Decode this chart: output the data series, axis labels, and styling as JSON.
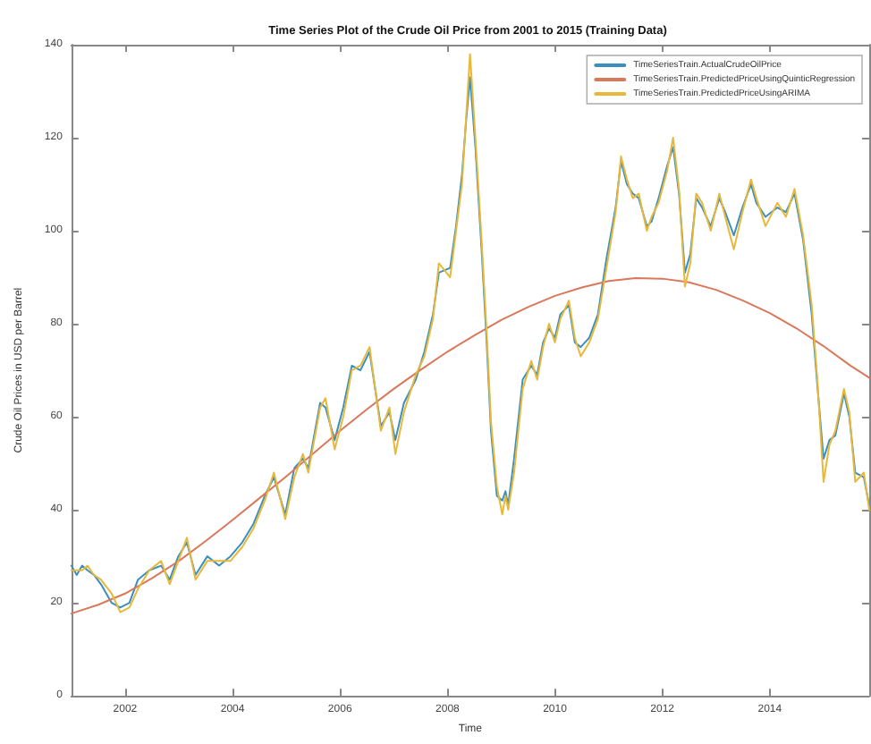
{
  "chart_data": {
    "type": "line",
    "title": "Time Series Plot of the Crude Oil Price from 2001 to 2015 (Training Data)",
    "xlabel": "Time",
    "ylabel": "Crude Oil Prices in USD per Barrel",
    "x": [
      2001.0,
      2001.1,
      2001.2,
      2001.3,
      2001.42,
      2001.55,
      2001.75,
      2001.91,
      2002.08,
      2002.24,
      2002.45,
      2002.67,
      2002.83,
      2002.99,
      2003.15,
      2003.31,
      2003.53,
      2003.75,
      2003.96,
      2004.18,
      2004.39,
      2004.6,
      2004.77,
      2004.98,
      2005.15,
      2005.31,
      2005.41,
      2005.63,
      2005.73,
      2005.9,
      2006.06,
      2006.22,
      2006.38,
      2006.55,
      2006.76,
      2006.92,
      2007.03,
      2007.19,
      2007.41,
      2007.57,
      2007.73,
      2007.84,
      2008.05,
      2008.16,
      2008.27,
      2008.35,
      2008.42,
      2008.52,
      2008.64,
      2008.73,
      2008.81,
      2008.92,
      2009.02,
      2009.08,
      2009.13,
      2009.24,
      2009.4,
      2009.56,
      2009.67,
      2009.78,
      2009.89,
      2010.0,
      2010.1,
      2010.26,
      2010.37,
      2010.48,
      2010.64,
      2010.8,
      2010.96,
      2011.13,
      2011.23,
      2011.34,
      2011.45,
      2011.56,
      2011.71,
      2011.8,
      2011.93,
      2012.09,
      2012.2,
      2012.31,
      2012.42,
      2012.52,
      2012.63,
      2012.74,
      2012.9,
      2013.06,
      2013.17,
      2013.33,
      2013.49,
      2013.65,
      2013.75,
      2013.92,
      2014.14,
      2014.3,
      2014.46,
      2014.62,
      2014.78,
      2014.89,
      2015.0,
      2015.11,
      2015.22,
      2015.38,
      2015.48,
      2015.59,
      2015.75,
      2015.85
    ],
    "series": [
      {
        "name": "TimeSeriesTrain.ActualCrudeOilPrice",
        "color": "#3a8fbf",
        "values": [
          28,
          26,
          28,
          27,
          26,
          24,
          20,
          19,
          20,
          25,
          27,
          28,
          25,
          30,
          33,
          26,
          30,
          28,
          30,
          33,
          37,
          43,
          47,
          39,
          49,
          51,
          49,
          63,
          62,
          55,
          62,
          71,
          70,
          74,
          58,
          61,
          55,
          63,
          68,
          74,
          82,
          91,
          92,
          101,
          112,
          124,
          133,
          118,
          95,
          76,
          57,
          43,
          42,
          44,
          41,
          51,
          68,
          71,
          69,
          76,
          79,
          77,
          82,
          84,
          76,
          75,
          77,
          82,
          94,
          105,
          115,
          110,
          108,
          107,
          101,
          102,
          107,
          114,
          118,
          108,
          91,
          95,
          107,
          105,
          101,
          107,
          104,
          99,
          105,
          110,
          106,
          103,
          105,
          104,
          108,
          98,
          82,
          66,
          51,
          55,
          56,
          65,
          60,
          48,
          47,
          41
        ]
      },
      {
        "name": "TimeSeriesTrain.PredictedPriceUsingQuinticRegression",
        "color": "#d9785a",
        "x": [
          2001,
          2001.5,
          2002,
          2002.5,
          2003,
          2003.5,
          2004,
          2004.5,
          2005,
          2005.5,
          2006,
          2006.5,
          2007,
          2007.5,
          2008,
          2008.5,
          2009,
          2009.5,
          2010,
          2010.5,
          2011,
          2011.5,
          2012,
          2012.5,
          2013,
          2013.5,
          2014,
          2014.5,
          2015,
          2015.5,
          2015.85
        ],
        "values": [
          17.7,
          19.6,
          22.0,
          25.3,
          29.0,
          33.3,
          37.8,
          42.5,
          47.2,
          52.1,
          57.0,
          61.6,
          66.0,
          70.1,
          74.0,
          77.5,
          80.8,
          83.6,
          86.0,
          87.8,
          89.2,
          89.8,
          89.7,
          88.9,
          87.3,
          85.0,
          82.3,
          79.0,
          75.2,
          71.0,
          68.4
        ]
      },
      {
        "name": "TimeSeriesTrain.PredictedPriceUsingARIMA",
        "color": "#e8b83a",
        "values": [
          27,
          27,
          27,
          28,
          26,
          25,
          22,
          18,
          19,
          23,
          27,
          29,
          24,
          29,
          34,
          25,
          29,
          29,
          29,
          32,
          36,
          42,
          48,
          38,
          47,
          52,
          48,
          62,
          64,
          53,
          60,
          70,
          71,
          75,
          57,
          62,
          52,
          61,
          69,
          73,
          81,
          93,
          90,
          100,
          110,
          125,
          138,
          120,
          97,
          78,
          59,
          45,
          39,
          43,
          40,
          48,
          66,
          72,
          68,
          75,
          80,
          76,
          81,
          85,
          77,
          73,
          76,
          81,
          92,
          104,
          116,
          111,
          107,
          108,
          100,
          103,
          106,
          113,
          120,
          109,
          88,
          93,
          108,
          106,
          100,
          108,
          103,
          96,
          104,
          111,
          107,
          101,
          106,
          103,
          109,
          99,
          84,
          67,
          46,
          54,
          57,
          66,
          61,
          46,
          48,
          40
        ]
      }
    ],
    "xlim": [
      2001,
      2015.85
    ],
    "xticks": [
      2002,
      2004,
      2006,
      2008,
      2010,
      2012,
      2014
    ],
    "ylim": [
      0,
      140
    ],
    "yticks": [
      0,
      20,
      40,
      60,
      80,
      100,
      120,
      140
    ],
    "legend": "top right",
    "marker": "none",
    "line_style": "solid"
  }
}
